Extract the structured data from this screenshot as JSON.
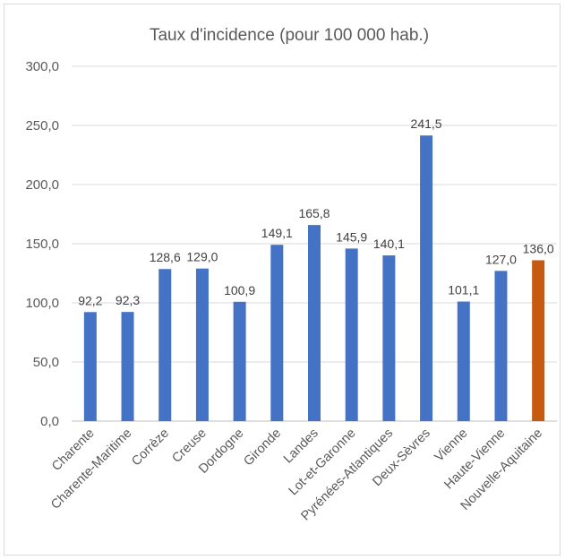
{
  "chart_data": {
    "type": "bar",
    "title": "Taux d'incidence (pour 100 000 hab.)",
    "xlabel": "",
    "ylabel": "",
    "ylim": [
      0,
      300
    ],
    "ytick_step": 50,
    "ytick_labels": [
      "0,0",
      "50,0",
      "100,0",
      "150,0",
      "200,0",
      "250,0",
      "300,0"
    ],
    "grid": true,
    "legend": "none",
    "categories": [
      "Charente",
      "Charente-Maritime",
      "Corrèze",
      "Creuse",
      "Dordogne",
      "Gironde",
      "Landes",
      "Lot-et-Garonne",
      "Pyrénées-Atlantiques",
      "Deux-Sèvres",
      "Vienne",
      "Haute-Vienne",
      "Nouvelle-Aquitaine"
    ],
    "values": [
      92.2,
      92.3,
      128.6,
      129.0,
      100.9,
      149.1,
      165.8,
      145.9,
      140.1,
      241.5,
      101.1,
      127.0,
      136.0
    ],
    "value_labels": [
      "92,2",
      "92,3",
      "128,6",
      "129,0",
      "100,9",
      "149,1",
      "165,8",
      "145,9",
      "140,1",
      "241,5",
      "101,1",
      "127,0",
      "136,0"
    ],
    "colors": {
      "default": "#4472c4",
      "highlight": "#c55a11"
    },
    "highlight_index": 12
  }
}
